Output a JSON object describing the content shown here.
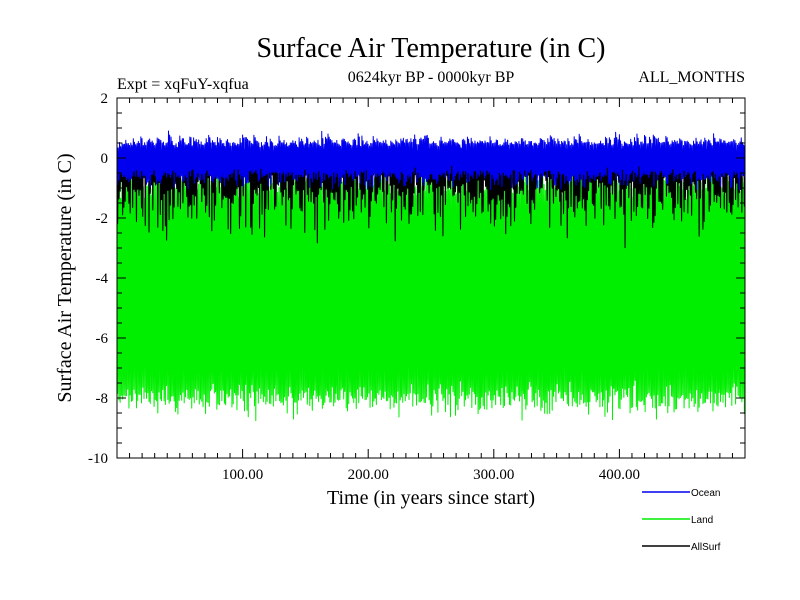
{
  "chart_data": {
    "type": "line",
    "title": "Surface Air Temperature (in C)",
    "subtitle": "0624kyr BP - 0000kyr BP",
    "expt_label": "Expt = xqFuY-xqfua",
    "months_label": "ALL_MONTHS",
    "xlabel": "Time (in years since start)",
    "ylabel": "Surface Air Temperature (in C)",
    "xlim": [
      0,
      500
    ],
    "ylim": [
      -10,
      2
    ],
    "x_ticks": [
      {
        "value": 100,
        "label": "100.00"
      },
      {
        "value": 200,
        "label": "200.00"
      },
      {
        "value": 300,
        "label": "300.00"
      },
      {
        "value": 400,
        "label": "400.00"
      }
    ],
    "y_ticks": [
      {
        "value": 2,
        "label": "2"
      },
      {
        "value": 0,
        "label": "0"
      },
      {
        "value": -2,
        "label": "-2"
      },
      {
        "value": -4,
        "label": "-4"
      },
      {
        "value": -6,
        "label": "-6"
      },
      {
        "value": -8,
        "label": "-8"
      },
      {
        "value": -10,
        "label": "-10"
      }
    ],
    "legend_position": "bottom-right",
    "series": [
      {
        "name": "Land",
        "color": "#00ee00",
        "samples_per_year": 12,
        "annual_mean": -4.2,
        "seasonal_max": -0.2,
        "seasonal_min": -8.6,
        "typical_range": [
          -8.0,
          -0.8
        ]
      },
      {
        "name": "Ocean",
        "color": "#0000ee",
        "samples_per_year": 12,
        "annual_mean": -0.1,
        "seasonal_max": 0.9,
        "seasonal_min": -1.2,
        "typical_range": [
          -0.6,
          0.5
        ]
      },
      {
        "name": "AllSurf",
        "color": "#000000",
        "samples_per_year": 12,
        "annual_mean": -0.6,
        "seasonal_max": 0.2,
        "seasonal_min": -3.4,
        "typical_range": [
          -1.2,
          0.1
        ]
      }
    ],
    "legend_entries": [
      "Ocean",
      "Land",
      "AllSurf"
    ]
  }
}
